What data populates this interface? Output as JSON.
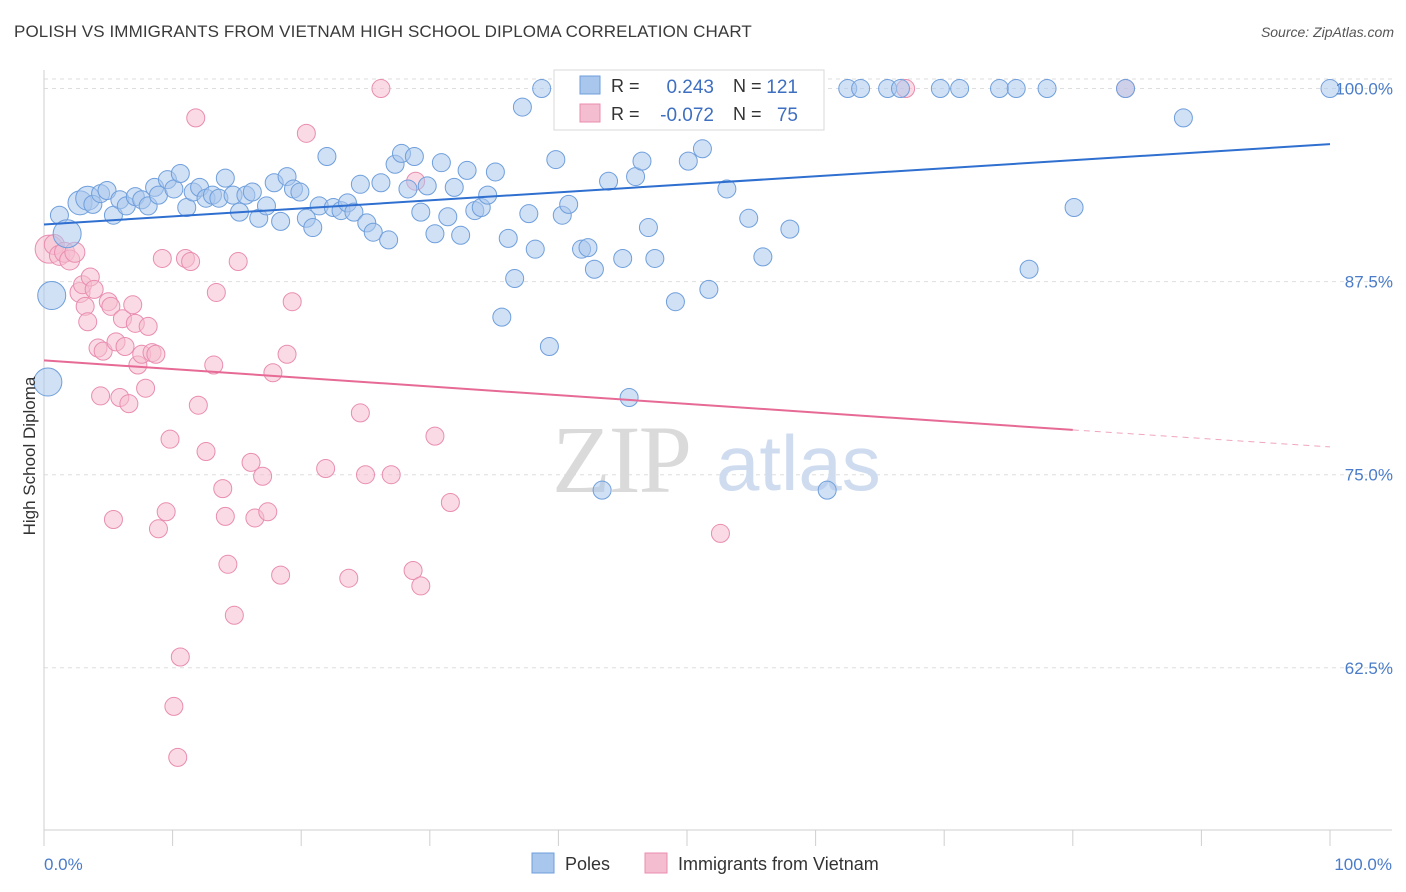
{
  "title": "POLISH VS IMMIGRANTS FROM VIETNAM HIGH SCHOOL DIPLOMA CORRELATION CHART",
  "source": "Source: ZipAtlas.com",
  "watermark": {
    "zip": "ZIP",
    "atlas": "atlas"
  },
  "colors": {
    "blue_fill": "#a9c6ec",
    "blue_stroke": "#6f9fdc",
    "blue_line": "#2f6fd0",
    "pink_fill": "#f5bdd0",
    "pink_stroke": "#e98db0",
    "pink_line": "#e66a95",
    "tick_text": "#4a7cc9",
    "grid": "#dedede"
  },
  "legend": {
    "rows": [
      {
        "r_label": "R =",
        "r_value": "0.243",
        "n_label": "N =",
        "n_value": "121"
      },
      {
        "r_label": "R =",
        "r_value": "-0.072",
        "n_label": "N =",
        "n_value": "75"
      }
    ]
  },
  "chart_data": {
    "type": "scatter",
    "ylabel": "High School Diploma",
    "x_tick_labels": [
      "0.0%",
      "100.0%"
    ],
    "y_tick_labels": [
      "100.0%",
      "87.5%",
      "75.0%",
      "62.5%"
    ],
    "y_ticks": [
      100.0,
      87.5,
      75.0,
      62.5
    ],
    "xlim": [
      0,
      100
    ],
    "ylim": [
      52.0,
      101.2
    ],
    "grid": true,
    "legend_position": "top-center",
    "series": [
      {
        "name": "Poles",
        "trend": {
          "x0": 0,
          "y0": 91.2,
          "x1": 100,
          "y1": 96.4
        },
        "points": [
          [
            0.3,
            81.0,
            14
          ],
          [
            0.6,
            86.6,
            14
          ],
          [
            1.2,
            91.8,
            9
          ],
          [
            1.8,
            90.6,
            14
          ],
          [
            2.8,
            92.6,
            12
          ],
          [
            3.4,
            92.9,
            12
          ],
          [
            3.8,
            92.5,
            9
          ],
          [
            4.4,
            93.2,
            9
          ],
          [
            4.9,
            93.4,
            9
          ],
          [
            5.4,
            91.8,
            9
          ],
          [
            5.9,
            92.8,
            9
          ],
          [
            6.4,
            92.4,
            9
          ],
          [
            7.1,
            93.0,
            9
          ],
          [
            7.6,
            92.8,
            9
          ],
          [
            8.1,
            92.4,
            9
          ],
          [
            8.6,
            93.6,
            9
          ],
          [
            8.9,
            93.1,
            9
          ],
          [
            9.6,
            94.1,
            9
          ],
          [
            10.1,
            93.5,
            9
          ],
          [
            10.6,
            94.5,
            9
          ],
          [
            11.1,
            92.3,
            9
          ],
          [
            11.6,
            93.3,
            9
          ],
          [
            12.1,
            93.6,
            9
          ],
          [
            12.6,
            92.9,
            9
          ],
          [
            13.1,
            93.1,
            9
          ],
          [
            13.6,
            92.9,
            9
          ],
          [
            14.1,
            94.2,
            9
          ],
          [
            14.7,
            93.1,
            9
          ],
          [
            15.2,
            92.0,
            9
          ],
          [
            15.7,
            93.1,
            9
          ],
          [
            16.2,
            93.3,
            9
          ],
          [
            16.7,
            91.6,
            9
          ],
          [
            17.3,
            92.4,
            9
          ],
          [
            17.9,
            93.9,
            9
          ],
          [
            18.4,
            91.4,
            9
          ],
          [
            18.9,
            94.3,
            9
          ],
          [
            19.4,
            93.5,
            9
          ],
          [
            19.9,
            93.3,
            9
          ],
          [
            20.4,
            91.6,
            9
          ],
          [
            20.9,
            91.0,
            9
          ],
          [
            21.4,
            92.4,
            9
          ],
          [
            22.0,
            95.6,
            9
          ],
          [
            22.5,
            92.3,
            9
          ],
          [
            23.1,
            92.1,
            9
          ],
          [
            23.6,
            92.6,
            9
          ],
          [
            24.1,
            92.0,
            9
          ],
          [
            24.6,
            93.8,
            9
          ],
          [
            25.1,
            91.3,
            9
          ],
          [
            25.6,
            90.7,
            9
          ],
          [
            26.2,
            93.9,
            9
          ],
          [
            26.8,
            90.2,
            9
          ],
          [
            27.3,
            95.1,
            9
          ],
          [
            27.8,
            95.8,
            9
          ],
          [
            28.3,
            93.5,
            9
          ],
          [
            28.8,
            95.6,
            9
          ],
          [
            29.3,
            92.0,
            9
          ],
          [
            29.8,
            93.7,
            9
          ],
          [
            30.4,
            90.6,
            9
          ],
          [
            30.9,
            95.2,
            9
          ],
          [
            31.4,
            91.7,
            9
          ],
          [
            31.9,
            93.6,
            9
          ],
          [
            32.4,
            90.5,
            9
          ],
          [
            32.9,
            94.7,
            9
          ],
          [
            33.5,
            92.1,
            9
          ],
          [
            34.0,
            92.3,
            9
          ],
          [
            34.5,
            93.1,
            9
          ],
          [
            35.1,
            94.6,
            9
          ],
          [
            35.6,
            85.2,
            9
          ],
          [
            36.1,
            90.3,
            9
          ],
          [
            36.6,
            87.7,
            9
          ],
          [
            37.2,
            98.8,
            9
          ],
          [
            37.7,
            91.9,
            9
          ],
          [
            38.2,
            89.6,
            9
          ],
          [
            38.7,
            100.0,
            9
          ],
          [
            39.3,
            83.3,
            9
          ],
          [
            39.8,
            95.4,
            9
          ],
          [
            40.3,
            91.8,
            9
          ],
          [
            40.8,
            92.5,
            9
          ],
          [
            41.3,
            98.0,
            9
          ],
          [
            41.8,
            89.6,
            9
          ],
          [
            42.3,
            89.7,
            9
          ],
          [
            42.8,
            88.3,
            9
          ],
          [
            43.4,
            74.0,
            9
          ],
          [
            43.9,
            94.0,
            9
          ],
          [
            44.5,
            100.0,
            9
          ],
          [
            45.0,
            89.0,
            9
          ],
          [
            45.5,
            80.0,
            9
          ],
          [
            46.0,
            94.3,
            9
          ],
          [
            46.5,
            95.3,
            9
          ],
          [
            47.0,
            91.0,
            9
          ],
          [
            47.5,
            89.0,
            9
          ],
          [
            48.0,
            98.6,
            9
          ],
          [
            48.6,
            100.0,
            9
          ],
          [
            49.1,
            86.2,
            9
          ],
          [
            49.6,
            100.0,
            9
          ],
          [
            50.1,
            95.3,
            9
          ],
          [
            51.2,
            96.1,
            9
          ],
          [
            51.7,
            87.0,
            9
          ],
          [
            53.1,
            93.5,
            9
          ],
          [
            53.7,
            100.0,
            9
          ],
          [
            54.8,
            91.6,
            9
          ],
          [
            55.9,
            89.1,
            9
          ],
          [
            56.9,
            100.0,
            9
          ],
          [
            58.0,
            90.9,
            9
          ],
          [
            60.9,
            74.0,
            9
          ],
          [
            62.5,
            100.0,
            9
          ],
          [
            63.5,
            100.0,
            9
          ],
          [
            65.6,
            100.0,
            9
          ],
          [
            66.6,
            100.0,
            9
          ],
          [
            69.7,
            100.0,
            9
          ],
          [
            71.2,
            100.0,
            9
          ],
          [
            74.3,
            100.0,
            9
          ],
          [
            75.6,
            100.0,
            9
          ],
          [
            76.6,
            88.3,
            9
          ],
          [
            78.0,
            100.0,
            9
          ],
          [
            80.1,
            92.3,
            9
          ],
          [
            84.1,
            100.0,
            9
          ],
          [
            88.6,
            98.1,
            9
          ],
          [
            100.0,
            100.0,
            9
          ]
        ]
      },
      {
        "name": "Immigrants from Vietnam",
        "trend": {
          "x0": 0,
          "y0": 82.4,
          "x1": 80,
          "y1": 77.9,
          "dash_to_x": 100,
          "dash_to_y": 76.8
        },
        "points": [
          [
            0.4,
            89.6,
            14
          ],
          [
            0.8,
            89.9,
            10
          ],
          [
            1.2,
            89.2,
            10
          ],
          [
            1.6,
            89.4,
            10
          ],
          [
            2.0,
            88.9,
            10
          ],
          [
            2.4,
            89.4,
            10
          ],
          [
            2.8,
            86.8,
            10
          ],
          [
            3.0,
            87.3,
            9
          ],
          [
            3.2,
            85.9,
            9
          ],
          [
            3.4,
            84.9,
            9
          ],
          [
            3.6,
            87.8,
            9
          ],
          [
            3.9,
            87.0,
            9
          ],
          [
            4.2,
            83.2,
            9
          ],
          [
            4.4,
            80.1,
            9
          ],
          [
            4.6,
            83.0,
            9
          ],
          [
            5.0,
            86.2,
            9
          ],
          [
            5.2,
            85.9,
            9
          ],
          [
            5.4,
            72.1,
            9
          ],
          [
            5.6,
            83.6,
            9
          ],
          [
            5.9,
            80.0,
            9
          ],
          [
            6.1,
            85.1,
            9
          ],
          [
            6.3,
            83.3,
            9
          ],
          [
            6.6,
            79.6,
            9
          ],
          [
            6.9,
            86.0,
            9
          ],
          [
            7.1,
            84.8,
            9
          ],
          [
            7.3,
            82.1,
            9
          ],
          [
            7.6,
            82.8,
            9
          ],
          [
            7.9,
            80.6,
            9
          ],
          [
            8.1,
            84.6,
            9
          ],
          [
            8.4,
            82.9,
            9
          ],
          [
            8.7,
            82.8,
            9
          ],
          [
            8.9,
            71.5,
            9
          ],
          [
            9.2,
            89.0,
            9
          ],
          [
            9.5,
            72.6,
            9
          ],
          [
            9.8,
            77.3,
            9
          ],
          [
            10.1,
            60.0,
            9
          ],
          [
            10.4,
            56.7,
            9
          ],
          [
            10.6,
            63.2,
            9
          ],
          [
            11.0,
            89.0,
            9
          ],
          [
            11.4,
            88.8,
            9
          ],
          [
            11.8,
            98.1,
            9
          ],
          [
            12.0,
            79.5,
            9
          ],
          [
            12.6,
            76.5,
            9
          ],
          [
            13.2,
            82.1,
            9
          ],
          [
            13.4,
            86.8,
            9
          ],
          [
            13.9,
            74.1,
            9
          ],
          [
            14.1,
            72.3,
            9
          ],
          [
            14.3,
            69.2,
            9
          ],
          [
            14.8,
            65.9,
            9
          ],
          [
            15.1,
            88.8,
            9
          ],
          [
            16.1,
            75.8,
            9
          ],
          [
            16.4,
            72.2,
            9
          ],
          [
            17.0,
            74.9,
            9
          ],
          [
            17.4,
            72.6,
            9
          ],
          [
            17.8,
            81.6,
            9
          ],
          [
            18.4,
            68.5,
            9
          ],
          [
            18.9,
            82.8,
            9
          ],
          [
            19.3,
            86.2,
            9
          ],
          [
            20.4,
            97.1,
            9
          ],
          [
            21.9,
            75.4,
            9
          ],
          [
            23.7,
            68.3,
            9
          ],
          [
            24.6,
            79.0,
            9
          ],
          [
            25.0,
            75.0,
            9
          ],
          [
            26.2,
            100.0,
            9
          ],
          [
            27.0,
            75.0,
            9
          ],
          [
            28.7,
            68.8,
            9
          ],
          [
            28.9,
            94.0,
            9
          ],
          [
            29.3,
            67.8,
            9
          ],
          [
            30.4,
            77.5,
            9
          ],
          [
            31.6,
            73.2,
            9
          ],
          [
            52.6,
            71.2,
            9
          ],
          [
            67.0,
            100.0,
            9
          ],
          [
            84.1,
            100.0,
            9
          ]
        ]
      }
    ]
  }
}
